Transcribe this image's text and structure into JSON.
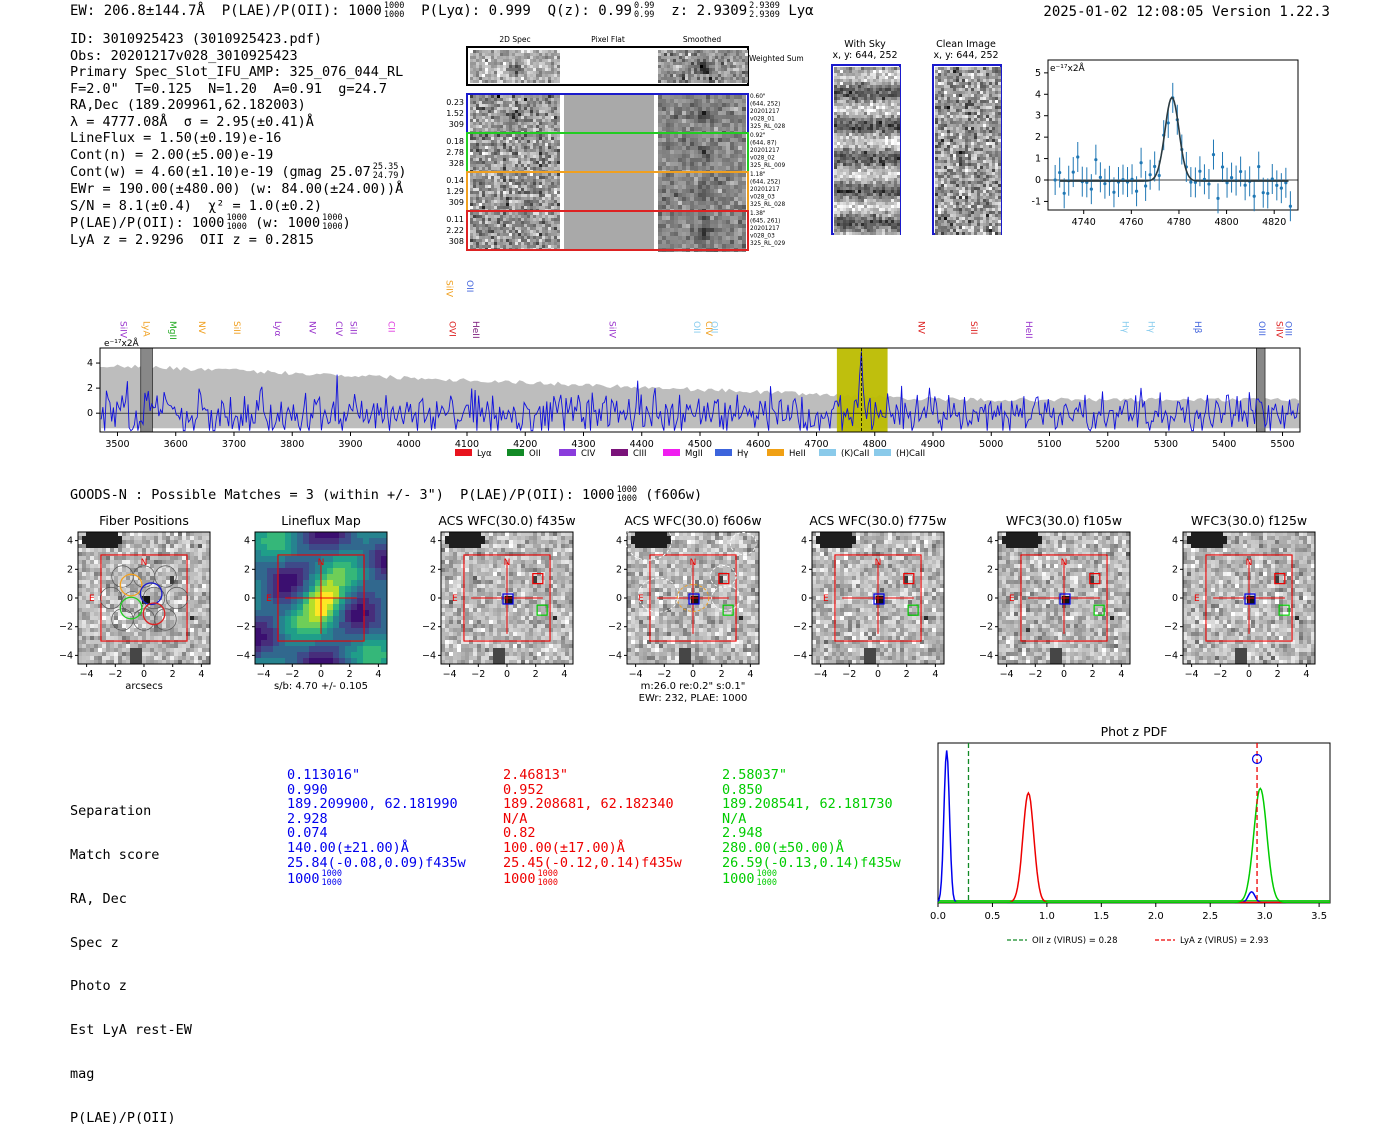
{
  "header": {
    "ew": "EW: 206.8±144.7Å",
    "plae_label": "P(LAE)/P(OII): 1000",
    "plae_num": "1000",
    "plae_den": "1000",
    "plya": "P(Lyα): 0.999",
    "qz_label": "Q(z): 0.99",
    "qz_num": "0.99",
    "qz_den": "0.99",
    "z_label": "z: 2.9309",
    "z_num": "2.9309",
    "z_den": "2.9309",
    "z_line": "Lyα",
    "timestamp": "2025-01-02 12:08:05",
    "version": "Version 1.22.3"
  },
  "info": {
    "id": "ID: 3010925423 (3010925423.pdf)",
    "obs": "Obs: 20201217v028_3010925423",
    "primary": "Primary Spec_Slot_IFU_AMP: 325_076_044_RL",
    "fparams": "F=2.0\"  T=0.125  N=1.20  A=0.91  g=24.7",
    "radec": "RA,Dec (189.209961,62.182003)",
    "lambda": "λ = 4777.08Å  σ = 2.95(±0.41)Å",
    "lineflux": "LineFlux = 1.50(±0.19)e-16",
    "contn": "Cont(n) = 2.00(±5.00)e-19",
    "contw": "Cont(w) = 4.60(±1.10)e-19 (gmag 25.07",
    "contw_num": "25.35",
    "contw_den": "24.79",
    "contw_end": ")",
    "ewr": "EWr = 190.00(±480.00) (w: 84.00(±24.00))Å",
    "sn": "S/N = 8.1(±0.4)  χ² = 1.0(±0.2)",
    "plae": "P(LAE)/P(OII): 1000",
    "plae_n": "1000",
    "plae_d": "1000",
    "plae_w": "(w: 1000",
    "plae_wn": "1000",
    "plae_wd": "1000",
    "plae_we": ")",
    "lyaz": "LyA z = 2.9296  OII z = 0.2815"
  },
  "cutouts": {
    "col_titles": [
      "2D Spec",
      "Pixel Flat",
      "Smoothed"
    ],
    "weighted_label": "Weighted Sum",
    "rows": [
      {
        "left": [
          "0.23",
          "1.52",
          "309"
        ],
        "right": [
          "0.60\"",
          "(644, 252)",
          "20201217",
          "v028_01",
          "325_RL_028"
        ],
        "color": "#1a1acc"
      },
      {
        "left": [
          "0.18",
          "2.78",
          "328"
        ],
        "right": [
          "0.92\"",
          "(644, 87)",
          "20201217",
          "v028_02",
          "325_RL_009"
        ],
        "color": "#22cc22"
      },
      {
        "left": [
          "0.14",
          "1.29",
          "309"
        ],
        "right": [
          "1.18\"",
          "(644, 252)",
          "20201217",
          "v028_03",
          "325_RL_028"
        ],
        "color": "#f0a020"
      },
      {
        "left": [
          "0.11",
          "2.22",
          "308"
        ],
        "right": [
          "1.38\"",
          "(645, 261)",
          "20201217",
          "v028_03",
          "325_RL_029"
        ],
        "color": "#dd2222"
      }
    ],
    "with_sky_title": "With Sky",
    "with_sky_sub": "x, y: 644, 252",
    "clean_title": "Clean Image",
    "clean_sub": "x, y: 644, 252"
  },
  "zoom_chart": {
    "type": "scatter",
    "unit_label": "e⁻¹⁷x2Å",
    "xlim": [
      4725,
      4830
    ],
    "ylim": [
      -1.4,
      5.6
    ],
    "xticks": [
      4740,
      4760,
      4780,
      4800,
      4820
    ],
    "yticks": [
      -1,
      0,
      1,
      2,
      3,
      4,
      5
    ],
    "gauss": {
      "center": 4777.08,
      "sigma": 2.95,
      "amp": 3.9,
      "cont": -0.05
    }
  },
  "chart_data": {
    "type": "line",
    "title": "",
    "unit_label": "e⁻¹⁷x2Å",
    "xlim": [
      3470,
      5530
    ],
    "ylim": [
      -1.5,
      5.2
    ],
    "xticks": [
      3500,
      3600,
      3700,
      3800,
      3900,
      4000,
      4100,
      4200,
      4300,
      4400,
      4500,
      4600,
      4700,
      4800,
      4900,
      5000,
      5100,
      5200,
      5300,
      5400,
      5500
    ],
    "yticks": [
      0,
      2,
      4
    ],
    "highlight_band": [
      4735,
      4822
    ],
    "peak_wavelength": 4777.08,
    "masked_bands": [
      [
        3540,
        3560
      ],
      [
        5455,
        5470
      ]
    ],
    "line_markers": [
      {
        "label": "SiIV",
        "w": 3505,
        "color": "#9933cc",
        "row": 1
      },
      {
        "label": "LyA",
        "w": 3545,
        "color": "#f0a020",
        "row": 1
      },
      {
        "label": "MgII",
        "w": 3590,
        "color": "#22aa22",
        "row": 1
      },
      {
        "label": "NV",
        "w": 3640,
        "color": "#f0a020",
        "row": 1
      },
      {
        "label": "SiII",
        "w": 3700,
        "color": "#f0a020",
        "row": 1
      },
      {
        "label": "Lyα",
        "w": 3770,
        "color": "#9933cc",
        "row": 1
      },
      {
        "label": "NV",
        "w": 3830,
        "color": "#9933cc",
        "row": 1
      },
      {
        "label": "CIV",
        "w": 3875,
        "color": "#9933cc",
        "row": 1
      },
      {
        "label": "SiII",
        "w": 3900,
        "color": "#9933cc",
        "row": 1
      },
      {
        "label": "CII",
        "w": 3965,
        "color": "#e040e0",
        "row": 1
      },
      {
        "label": "SiIV",
        "w": 4065,
        "color": "#f0a020",
        "row": 0
      },
      {
        "label": "OII",
        "w": 4100,
        "color": "#4466dd",
        "row": 0
      },
      {
        "label": "OVI",
        "w": 4070,
        "color": "#dd2222",
        "row": 1
      },
      {
        "label": "HeII",
        "w": 4110,
        "color": "#7a1a7a",
        "row": 1
      },
      {
        "label": "SiIV",
        "w": 4345,
        "color": "#9933cc",
        "row": 1
      },
      {
        "label": "OII",
        "w": 4490,
        "color": "#88ccee",
        "row": 1
      },
      {
        "label": "CIV",
        "w": 4510,
        "color": "#f0a020",
        "row": 1
      },
      {
        "label": "OII",
        "w": 4520,
        "color": "#88ccee",
        "row": 1
      },
      {
        "label": "NV",
        "w": 4875,
        "color": "#dd2222",
        "row": 1
      },
      {
        "label": "SiII",
        "w": 4965,
        "color": "#dd2222",
        "row": 1
      },
      {
        "label": "HeII",
        "w": 5060,
        "color": "#9933cc",
        "row": 1
      },
      {
        "label": "Hγ",
        "w": 5225,
        "color": "#88ccee",
        "row": 1
      },
      {
        "label": "Hγ",
        "w": 5270,
        "color": "#88ccee",
        "row": 1
      },
      {
        "label": "Hβ",
        "w": 5350,
        "color": "#4466dd",
        "row": 1
      },
      {
        "label": "OIII",
        "w": 5460,
        "color": "#4466dd",
        "row": 1
      },
      {
        "label": "SiIV",
        "w": 5490,
        "color": "#dd2222",
        "row": 1
      },
      {
        "label": "OIII",
        "w": 5505,
        "color": "#4466dd",
        "row": 1
      }
    ],
    "legend": [
      {
        "label": "Lyα",
        "color": "#e8141e"
      },
      {
        "label": "OII",
        "color": "#128a26"
      },
      {
        "label": "CIV",
        "color": "#8a3cdc"
      },
      {
        "label": "CIII",
        "color": "#7a127a"
      },
      {
        "label": "MgII",
        "color": "#f01ef0"
      },
      {
        "label": "Hγ",
        "color": "#3c64dc"
      },
      {
        "label": "HeII",
        "color": "#f0a014"
      },
      {
        "label": "(K)CaII",
        "color": "#8acaea"
      },
      {
        "label": "(H)CaII",
        "color": "#8acaea"
      }
    ]
  },
  "goods": {
    "line": "GOODS-N : Possible Matches = 3 (within +/- 3\")  P(LAE)/P(OII): 1000",
    "num": "1000",
    "den": "1000",
    "end": "(f606w)"
  },
  "imaging": {
    "panels": [
      {
        "title": "Fiber Positions",
        "type": "fiber",
        "below": "arcsecs",
        "below2": ""
      },
      {
        "title": "Lineflux Map",
        "type": "lineflux",
        "below": "s/b: 4.70 +/- 0.105",
        "below2": ""
      },
      {
        "title": "ACS WFC(30.0) f435w",
        "type": "img",
        "below": "",
        "below2": ""
      },
      {
        "title": "ACS WFC(30.0) f606w",
        "type": "img606",
        "below": "m:26.0  re:0.2\"  s:0.1\"",
        "below2": "EWr: 232, PLAE: 1000"
      },
      {
        "title": "ACS WFC(30.0) f775w",
        "type": "img",
        "below": "",
        "below2": ""
      },
      {
        "title": "WFC3(30.0) f105w",
        "type": "img",
        "below": "",
        "below2": ""
      },
      {
        "title": "WFC3(30.0) f125w",
        "type": "img",
        "below": "",
        "below2": ""
      }
    ],
    "axis_ticks": [
      -4,
      -2,
      0,
      2,
      4
    ],
    "n_label": "N",
    "e_label": "E"
  },
  "matches": {
    "labels": [
      "Separation",
      "Match score",
      "RA, Dec",
      "Spec z",
      "Photo z",
      "Est LyA rest-EW",
      "mag",
      "P(LAE)/P(OII)"
    ],
    "columns": [
      {
        "color": "#0000ee",
        "values": [
          "0.113016\"",
          "0.990",
          "189.209900, 62.181990",
          "2.928",
          "0.074",
          "140.00(±21.00)Å",
          "25.84(-0.08,0.09)f435w"
        ],
        "plae": "1000",
        "pn": "1000",
        "pd": "1000"
      },
      {
        "color": "#ee0000",
        "values": [
          "2.46813\"",
          "0.952",
          "189.208681, 62.182340",
          "N/A",
          "0.82",
          "100.00(±17.00)Å",
          "25.45(-0.12,0.14)f435w"
        ],
        "plae": "1000",
        "pn": "1000",
        "pd": "1000"
      },
      {
        "color": "#00cc00",
        "values": [
          "2.58037\"",
          "0.850",
          "189.208541, 62.181730",
          "N/A",
          "2.948",
          "280.00(±50.00)Å",
          "26.59(-0.13,0.14)f435w"
        ],
        "plae": "1000",
        "pn": "1000",
        "pd": "1000"
      }
    ]
  },
  "photoz": {
    "type": "line",
    "title": "Phot z PDF",
    "xlim": [
      0,
      3.6
    ],
    "xticks": [
      0.0,
      0.5,
      1.0,
      1.5,
      2.0,
      2.5,
      3.0,
      3.5
    ],
    "oii_z": 0.28,
    "lya_z": 2.93,
    "legend_oii": "OII z (VIRUS) = 0.28",
    "legend_lya": "LyA z (VIRUS) = 2.93",
    "series": [
      {
        "name": "match1",
        "color": "#0000ee",
        "peaks": [
          {
            "mu": 0.08,
            "s": 0.025,
            "a": 1.0
          },
          {
            "mu": 2.88,
            "s": 0.03,
            "a": 0.07
          }
        ]
      },
      {
        "name": "match2",
        "color": "#ee0000",
        "peaks": [
          {
            "mu": 0.83,
            "s": 0.05,
            "a": 0.72
          }
        ]
      },
      {
        "name": "match3",
        "color": "#00cc00",
        "peaks": [
          {
            "mu": 2.96,
            "s": 0.06,
            "a": 0.75
          }
        ]
      }
    ]
  }
}
